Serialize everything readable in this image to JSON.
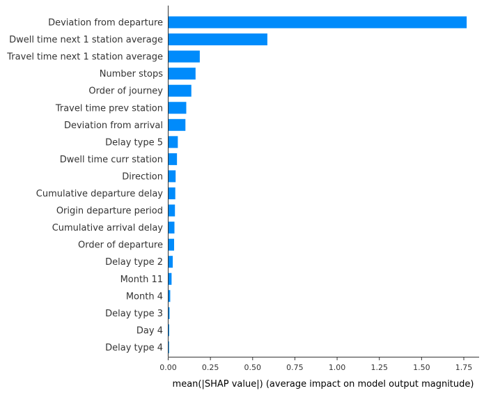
{
  "chart_data": {
    "type": "bar",
    "orientation": "horizontal",
    "title": "",
    "xlabel": "mean(|SHAP value|) (average impact on model output magnitude)",
    "ylabel": "",
    "xlim": [
      0,
      1.8
    ],
    "xticks": [
      "0.00",
      "0.25",
      "0.50",
      "0.75",
      "1.00",
      "1.25",
      "1.50",
      "1.75"
    ],
    "grid": false,
    "bar_color": "#008bfb",
    "categories": [
      "Deviation from departure",
      "Dwell time next 1 station average",
      "Travel time next 1 station average",
      "Number stops",
      "Order of journey",
      "Travel time prev station",
      "Deviation from arrival",
      "Delay type 5",
      "Dwell time curr station",
      "Direction",
      "Cumulative departure delay",
      "Origin departure period",
      "Cumulative arrival delay",
      "Order of departure",
      "Delay type 2",
      "Month 11",
      "Month 4",
      "Delay type 3",
      "Day 4",
      "Delay type 4"
    ],
    "values": [
      1.765,
      0.585,
      0.185,
      0.16,
      0.135,
      0.105,
      0.1,
      0.055,
      0.05,
      0.042,
      0.04,
      0.038,
      0.035,
      0.033,
      0.025,
      0.018,
      0.01,
      0.006,
      0.004,
      0.003
    ]
  }
}
